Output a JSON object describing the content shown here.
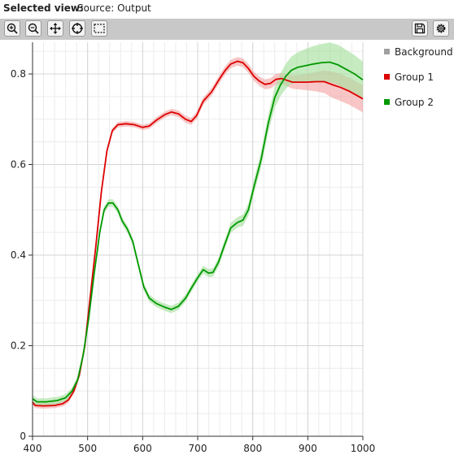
{
  "header": {
    "selected_view_label": "Selected view:",
    "source_label": "Source: Output"
  },
  "toolbar": {
    "buttons": [
      {
        "name": "zoom-in-button",
        "icon": "zoom-in-icon"
      },
      {
        "name": "zoom-out-button",
        "icon": "zoom-out-icon"
      },
      {
        "name": "pan-button",
        "icon": "move-icon"
      },
      {
        "name": "reset-view-button",
        "icon": "crosshair-icon"
      },
      {
        "name": "box-select-button",
        "icon": "box-select-icon"
      },
      {
        "name": "save-button",
        "icon": "save-icon"
      },
      {
        "name": "settings-button",
        "icon": "gear-icon"
      }
    ]
  },
  "legend": [
    {
      "label": "Background",
      "color": "#a0a0a0"
    },
    {
      "label": "Group 1",
      "color": "#dd0000"
    },
    {
      "label": "Group 2",
      "color": "#009900"
    }
  ],
  "chart_data": {
    "type": "line",
    "xlim": [
      400,
      1000
    ],
    "ylim": [
      0,
      0.87
    ],
    "x_ticks": [
      "400",
      "500",
      "600",
      "700",
      "800",
      "900",
      "1000"
    ],
    "y_ticks": [
      "0",
      "0.2",
      "0.4",
      "0.6",
      "0.8"
    ],
    "grid": true,
    "legend_position": "right",
    "series": [
      {
        "name": "Group 1",
        "color": "#dd0000",
        "band_color": "#f4a8a8",
        "points": [
          [
            400,
            0.075
          ],
          [
            405,
            0.068
          ],
          [
            420,
            0.067
          ],
          [
            440,
            0.068
          ],
          [
            455,
            0.072
          ],
          [
            465,
            0.08
          ],
          [
            475,
            0.1
          ],
          [
            485,
            0.135
          ],
          [
            495,
            0.2
          ],
          [
            505,
            0.31
          ],
          [
            515,
            0.42
          ],
          [
            525,
            0.54
          ],
          [
            535,
            0.63
          ],
          [
            545,
            0.675
          ],
          [
            555,
            0.688
          ],
          [
            570,
            0.69
          ],
          [
            585,
            0.688
          ],
          [
            600,
            0.682
          ],
          [
            612,
            0.685
          ],
          [
            625,
            0.698
          ],
          [
            640,
            0.71
          ],
          [
            652,
            0.716
          ],
          [
            665,
            0.712
          ],
          [
            678,
            0.7
          ],
          [
            688,
            0.695
          ],
          [
            698,
            0.708
          ],
          [
            710,
            0.74
          ],
          [
            725,
            0.76
          ],
          [
            740,
            0.79
          ],
          [
            750,
            0.808
          ],
          [
            760,
            0.822
          ],
          [
            772,
            0.828
          ],
          [
            782,
            0.825
          ],
          [
            792,
            0.812
          ],
          [
            802,
            0.795
          ],
          [
            812,
            0.784
          ],
          [
            822,
            0.777
          ],
          [
            832,
            0.779
          ],
          [
            842,
            0.788
          ],
          [
            852,
            0.79
          ],
          [
            862,
            0.786
          ],
          [
            872,
            0.782
          ],
          [
            885,
            0.782
          ],
          [
            900,
            0.782
          ],
          [
            915,
            0.783
          ],
          [
            930,
            0.783
          ],
          [
            945,
            0.776
          ],
          [
            960,
            0.77
          ],
          [
            975,
            0.762
          ],
          [
            990,
            0.752
          ],
          [
            1000,
            0.745
          ]
        ],
        "band": [
          [
            400,
            0.006
          ],
          [
            600,
            0.006
          ],
          [
            700,
            0.008
          ],
          [
            800,
            0.01
          ],
          [
            850,
            0.012
          ],
          [
            900,
            0.018
          ],
          [
            950,
            0.03
          ],
          [
            1000,
            0.03
          ]
        ]
      },
      {
        "name": "Group 2",
        "color": "#009900",
        "band_color": "#a8e0a0",
        "points": [
          [
            400,
            0.083
          ],
          [
            408,
            0.076
          ],
          [
            425,
            0.076
          ],
          [
            445,
            0.079
          ],
          [
            460,
            0.085
          ],
          [
            472,
            0.1
          ],
          [
            482,
            0.125
          ],
          [
            492,
            0.18
          ],
          [
            502,
            0.26
          ],
          [
            512,
            0.36
          ],
          [
            522,
            0.45
          ],
          [
            530,
            0.5
          ],
          [
            538,
            0.515
          ],
          [
            546,
            0.515
          ],
          [
            555,
            0.5
          ],
          [
            563,
            0.475
          ],
          [
            572,
            0.458
          ],
          [
            582,
            0.43
          ],
          [
            592,
            0.38
          ],
          [
            602,
            0.33
          ],
          [
            612,
            0.305
          ],
          [
            625,
            0.293
          ],
          [
            640,
            0.285
          ],
          [
            652,
            0.28
          ],
          [
            665,
            0.287
          ],
          [
            678,
            0.305
          ],
          [
            690,
            0.33
          ],
          [
            700,
            0.35
          ],
          [
            710,
            0.368
          ],
          [
            720,
            0.36
          ],
          [
            728,
            0.362
          ],
          [
            738,
            0.385
          ],
          [
            748,
            0.42
          ],
          [
            760,
            0.46
          ],
          [
            772,
            0.472
          ],
          [
            782,
            0.477
          ],
          [
            792,
            0.5
          ],
          [
            802,
            0.55
          ],
          [
            815,
            0.61
          ],
          [
            828,
            0.69
          ],
          [
            840,
            0.748
          ],
          [
            850,
            0.775
          ],
          [
            860,
            0.795
          ],
          [
            870,
            0.808
          ],
          [
            882,
            0.815
          ],
          [
            895,
            0.818
          ],
          [
            910,
            0.822
          ],
          [
            925,
            0.825
          ],
          [
            940,
            0.826
          ],
          [
            955,
            0.82
          ],
          [
            970,
            0.81
          ],
          [
            985,
            0.8
          ],
          [
            1000,
            0.787
          ]
        ],
        "band": [
          [
            400,
            0.008
          ],
          [
            700,
            0.008
          ],
          [
            780,
            0.012
          ],
          [
            830,
            0.02
          ],
          [
            870,
            0.03
          ],
          [
            900,
            0.038
          ],
          [
            950,
            0.045
          ],
          [
            1000,
            0.04
          ]
        ]
      }
    ]
  }
}
